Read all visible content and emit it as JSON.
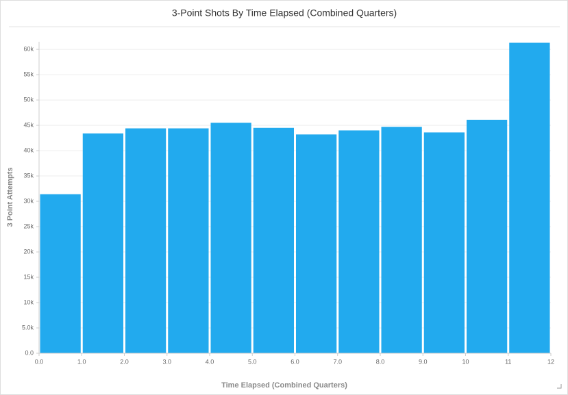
{
  "chart_data": {
    "type": "histogram",
    "title": "3-Point Shots By Time Elapsed (Combined Quarters)",
    "x_label": "Time Elapsed (Combined Quarters)",
    "y_label": "3 Point Attempts",
    "bins": [
      0,
      1,
      2,
      3,
      4,
      5,
      6,
      7,
      8,
      9,
      10,
      11,
      12
    ],
    "values": [
      31400,
      43400,
      44400,
      44400,
      45500,
      44500,
      43200,
      44000,
      44700,
      43600,
      46100,
      61300
    ],
    "color": "#22aaee",
    "xlim": [
      0,
      12
    ],
    "xticks": [
      {
        "value": 0,
        "label": "0.0"
      },
      {
        "value": 1,
        "label": "1.0"
      },
      {
        "value": 2,
        "label": "2.0"
      },
      {
        "value": 3,
        "label": "3.0"
      },
      {
        "value": 4,
        "label": "4.0"
      },
      {
        "value": 5,
        "label": "5.0"
      },
      {
        "value": 6,
        "label": "6.0"
      },
      {
        "value": 7,
        "label": "7.0"
      },
      {
        "value": 8,
        "label": "8.0"
      },
      {
        "value": 9,
        "label": "9.0"
      },
      10,
      11,
      12
    ],
    "ylim": [
      0,
      61500
    ],
    "yticks": [
      {
        "value": 0,
        "label": "0.0"
      },
      {
        "value": 5000,
        "label": "5.0k"
      },
      {
        "value": 10000,
        "label": "10k"
      },
      {
        "value": 15000,
        "label": "15k"
      },
      {
        "value": 20000,
        "label": "20k"
      },
      {
        "value": 25000,
        "label": "25k"
      },
      {
        "value": 30000,
        "label": "30k"
      },
      {
        "value": 35000,
        "label": "35k"
      },
      {
        "value": 40000,
        "label": "40k"
      },
      {
        "value": 45000,
        "label": "45k"
      },
      {
        "value": 50000,
        "label": "50k"
      },
      {
        "value": 55000,
        "label": "55k"
      },
      {
        "value": 60000,
        "label": "60k"
      }
    ],
    "grid": true
  }
}
